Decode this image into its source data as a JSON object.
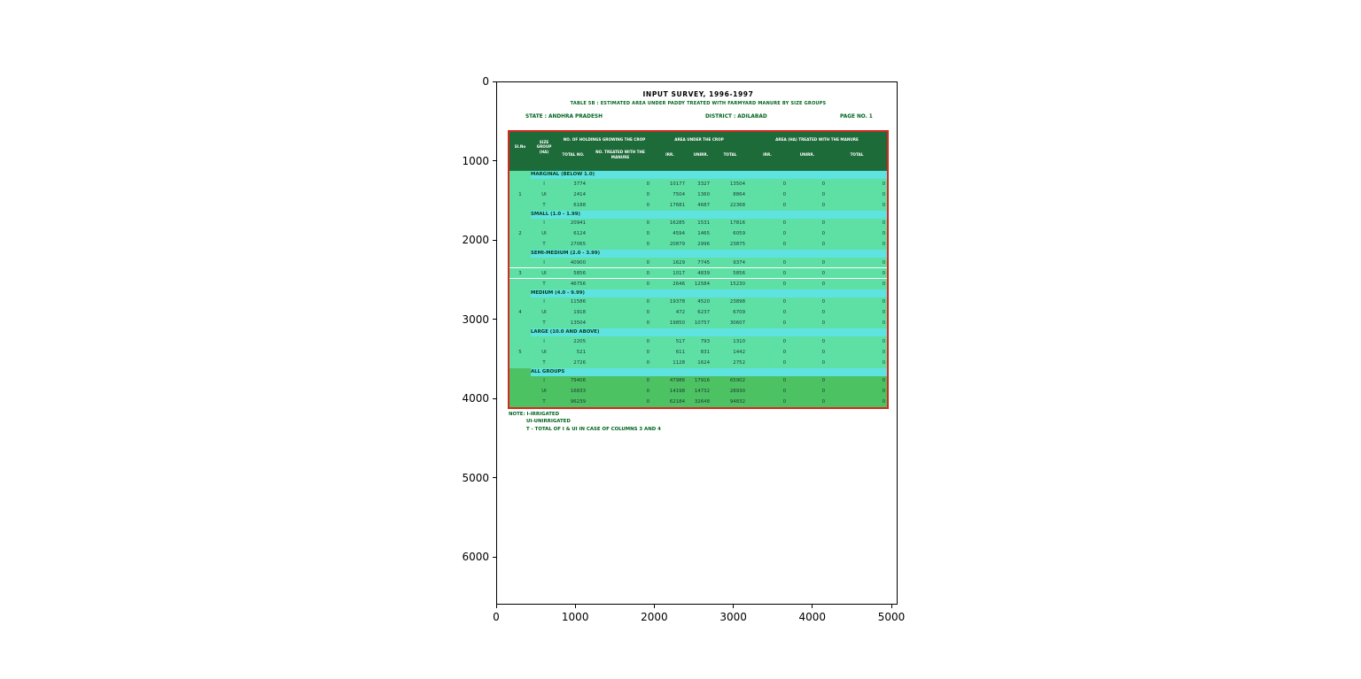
{
  "figure": {
    "x_ticks": [
      "0",
      "1000",
      "2000",
      "3000",
      "4000",
      "5000"
    ],
    "y_ticks": [
      "0",
      "1000",
      "2000",
      "3000",
      "4000",
      "5000",
      "6000"
    ]
  },
  "document": {
    "title": "INPUT SURVEY, 1996-1997",
    "subtitle": "TABLE 5B : ESTIMATED AREA UNDER PADDY TREATED WITH FARMYARD MANURE BY SIZE GROUPS",
    "state_label": "STATE : ANDHRA PRADESH",
    "district_label": "DISTRICT : ADILABAD",
    "page_label": "PAGE NO. 1",
    "notes": [
      "NOTE: I-IRRIGATED",
      "UI-UNIRRIGATED",
      "T - TOTAL OF I & UI IN CASE OF COLUMNS 3 AND 4"
    ]
  },
  "table": {
    "header": {
      "col_sno": "Sl.No",
      "col_size": "SIZE GROUP (HA)",
      "group_holdings": "NO. OF HOLDINGS GROWING THE CROP",
      "sub_total_no": "TOTAL NO.",
      "sub_treated": "NO. TREATED WITH THE MANURE",
      "group_area": "AREA UNDER THE CROP",
      "group_area_treated": "AREA (HA) TREATED WITH THE MANURE",
      "sub_irr": "IRR.",
      "sub_unirr": "UNIRR.",
      "sub_total": "TOTAL",
      "col_numbers": [
        "(1)",
        "(2)",
        "(3)",
        "(4)",
        "(5)",
        "(6)",
        "(7)",
        "(8)",
        "(9)",
        "(10)"
      ]
    },
    "row_type_key": [
      "I",
      "UI",
      "T"
    ],
    "groups": [
      {
        "sno": "1",
        "label": "MARGINAL (BELOW 1.0)",
        "rows": [
          {
            "type": "I",
            "values": [
              "3774",
              "0",
              "10177",
              "3327",
              "13504",
              "0",
              "0",
              "0"
            ]
          },
          {
            "type": "UI",
            "values": [
              "2414",
              "0",
              "7504",
              "1360",
              "8864",
              "0",
              "0",
              "0"
            ]
          },
          {
            "type": "T",
            "values": [
              "6188",
              "0",
              "17681",
              "4687",
              "22368",
              "0",
              "0",
              "0"
            ]
          }
        ]
      },
      {
        "sno": "2",
        "label": "SMALL (1.0 - 1.99)",
        "rows": [
          {
            "type": "I",
            "values": [
              "20941",
              "0",
              "16285",
              "1531",
              "17816",
              "0",
              "0",
              "0"
            ]
          },
          {
            "type": "UI",
            "values": [
              "6124",
              "0",
              "4594",
              "1465",
              "6059",
              "0",
              "0",
              "0"
            ]
          },
          {
            "type": "T",
            "values": [
              "27065",
              "0",
              "20879",
              "2996",
              "23875",
              "0",
              "0",
              "0"
            ]
          }
        ]
      },
      {
        "sno": "3",
        "label": "SEMI-MEDIUM (2.0 - 3.99)",
        "separators": true,
        "rows": [
          {
            "type": "I",
            "values": [
              "40900",
              "0",
              "1629",
              "7745",
              "9374",
              "0",
              "0",
              "0"
            ]
          },
          {
            "type": "UI",
            "values": [
              "5856",
              "0",
              "1017",
              "4839",
              "5856",
              "0",
              "0",
              "0"
            ]
          },
          {
            "type": "T",
            "values": [
              "46756",
              "0",
              "2646",
              "12584",
              "15230",
              "0",
              "0",
              "0"
            ]
          }
        ]
      },
      {
        "sno": "4",
        "label": "MEDIUM (4.0 - 9.99)",
        "rows": [
          {
            "type": "I",
            "values": [
              "11586",
              "0",
              "19378",
              "4520",
              "23898",
              "0",
              "0",
              "0"
            ]
          },
          {
            "type": "UI",
            "values": [
              "1918",
              "0",
              "472",
              "6237",
              "6709",
              "0",
              "0",
              "0"
            ]
          },
          {
            "type": "T",
            "values": [
              "13504",
              "0",
              "19850",
              "10757",
              "30607",
              "0",
              "0",
              "0"
            ]
          }
        ]
      },
      {
        "sno": "5",
        "label": "LARGE (10.0 AND ABOVE)",
        "rows": [
          {
            "type": "I",
            "values": [
              "2205",
              "0",
              "517",
              "793",
              "1310",
              "0",
              "0",
              "0"
            ]
          },
          {
            "type": "UI",
            "values": [
              "521",
              "0",
              "611",
              "831",
              "1442",
              "0",
              "0",
              "0"
            ]
          },
          {
            "type": "T",
            "values": [
              "2726",
              "0",
              "1128",
              "1624",
              "2752",
              "0",
              "0",
              "0"
            ]
          }
        ]
      },
      {
        "sno": "",
        "label": "ALL GROUPS",
        "all_groups": true,
        "rows": [
          {
            "type": "I",
            "values": [
              "79406",
              "0",
              "47986",
              "17916",
              "65902",
              "0",
              "0",
              "0"
            ]
          },
          {
            "type": "UI",
            "values": [
              "16833",
              "0",
              "14198",
              "14732",
              "28930",
              "0",
              "0",
              "0"
            ]
          },
          {
            "type": "T",
            "values": [
              "96239",
              "0",
              "62184",
              "32648",
              "94832",
              "0",
              "0",
              "0"
            ]
          }
        ]
      }
    ]
  }
}
